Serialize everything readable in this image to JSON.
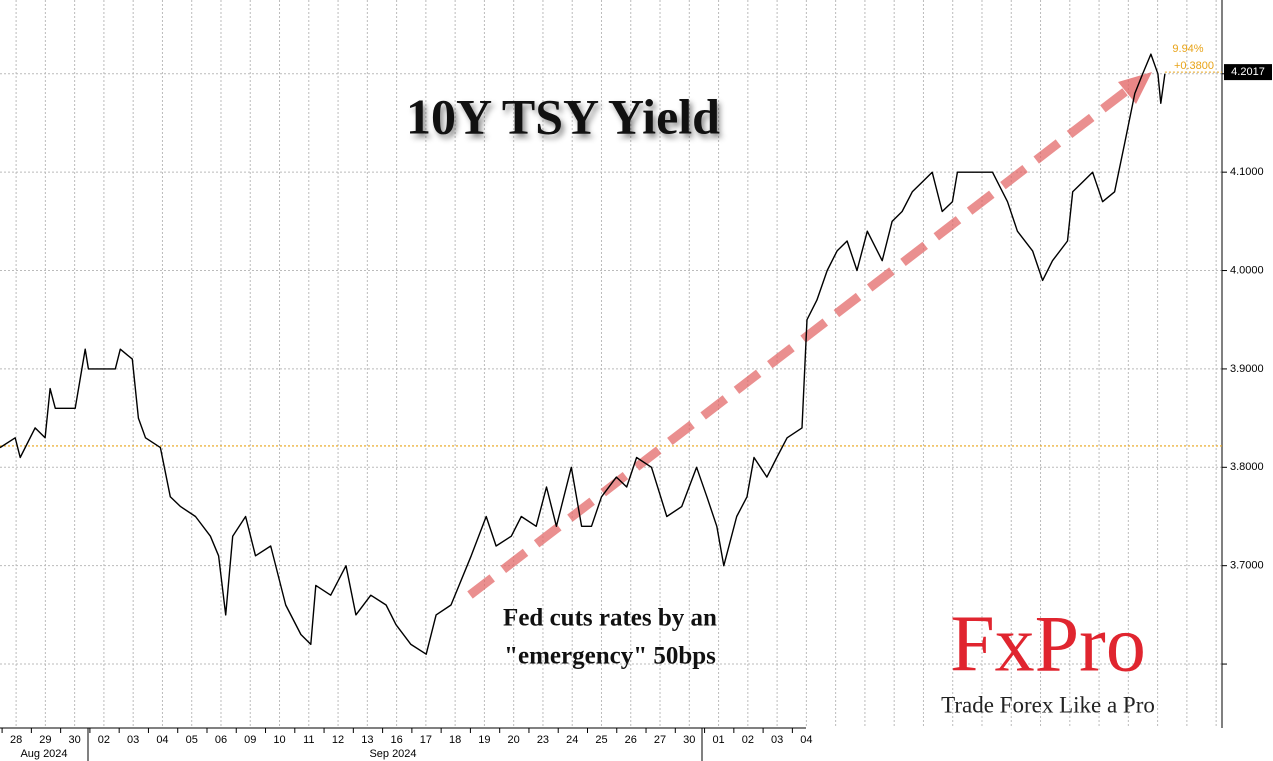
{
  "chart_data": {
    "type": "line",
    "title": "10Y TSY Yield",
    "annotation": [
      "Fed cuts rates by an",
      "\"emergency\" 50bps"
    ],
    "categories": [
      "28",
      "29",
      "30",
      "02",
      "03",
      "04",
      "05",
      "06",
      "09",
      "10",
      "11",
      "12",
      "13",
      "16",
      "17",
      "18",
      "19",
      "20",
      "23",
      "24",
      "25",
      "26",
      "27",
      "30",
      "01",
      "02",
      "03",
      "04",
      null,
      null,
      null,
      null,
      null,
      null,
      null,
      null,
      null,
      null,
      null,
      null,
      null,
      null
    ],
    "month_labels": [
      "Aug 2024",
      "Sep 2024"
    ],
    "xlim": [
      -0.55,
      41.2
    ],
    "ylim": [
      3.535,
      4.275
    ],
    "yticks": [
      {
        "value": 3.6,
        "label": null
      },
      {
        "value": 3.7,
        "label": "3.7000"
      },
      {
        "value": 3.8,
        "label": "3.8000"
      },
      {
        "value": 3.9,
        "label": "3.9000"
      },
      {
        "value": 4.0,
        "label": "4.0000"
      },
      {
        "value": 4.1,
        "label": "4.1000"
      },
      {
        "value": 4.2,
        "label": null
      }
    ],
    "grid": true,
    "series": [
      {
        "name": "10Y TSY Yield",
        "color": "#000000",
        "x": [
          -0.55,
          -0.03,
          0.14,
          0.65,
          0.99,
          1.16,
          1.34,
          2.02,
          2.19,
          2.36,
          2.47,
          3.39,
          3.56,
          3.97,
          4.18,
          4.42,
          4.93,
          5.27,
          5.62,
          6.13,
          6.64,
          6.92,
          7.16,
          7.4,
          7.84,
          8.18,
          8.7,
          9.21,
          9.73,
          10.07,
          10.24,
          10.75,
          11.27,
          11.61,
          12.12,
          12.64,
          12.98,
          13.49,
          14.01,
          14.35,
          14.86,
          15.55,
          16.06,
          16.4,
          16.92,
          17.26,
          17.77,
          18.12,
          18.46,
          18.97,
          19.32,
          19.66,
          20.0,
          20.51,
          20.86,
          21.2,
          21.71,
          22.23,
          22.74,
          23.25,
          23.6,
          23.94,
          24.18,
          24.62,
          24.97,
          25.21,
          25.65,
          25.99,
          26.34,
          26.85,
          27.02,
          27.36,
          27.71,
          28.05,
          28.39,
          28.73,
          29.08,
          29.59,
          29.93,
          30.27,
          30.62,
          30.96,
          31.3,
          31.64,
          31.99,
          32.16,
          33.36,
          33.87,
          34.21,
          34.73,
          35.07,
          35.41,
          35.92,
          36.1,
          36.44,
          36.78,
          37.12,
          37.53,
          37.88,
          38.22,
          38.49,
          38.77,
          39.01,
          39.11,
          39.25
        ],
        "values": [
          3.82,
          3.83,
          3.81,
          3.84,
          3.83,
          3.88,
          3.86,
          3.86,
          3.89,
          3.92,
          3.9,
          3.9,
          3.92,
          3.91,
          3.85,
          3.83,
          3.82,
          3.77,
          3.76,
          3.75,
          3.73,
          3.71,
          3.65,
          3.73,
          3.75,
          3.71,
          3.72,
          3.66,
          3.63,
          3.62,
          3.68,
          3.67,
          3.7,
          3.65,
          3.67,
          3.66,
          3.64,
          3.62,
          3.61,
          3.65,
          3.66,
          3.71,
          3.75,
          3.72,
          3.73,
          3.75,
          3.74,
          3.78,
          3.74,
          3.8,
          3.74,
          3.74,
          3.77,
          3.79,
          3.78,
          3.81,
          3.8,
          3.75,
          3.76,
          3.8,
          3.77,
          3.74,
          3.7,
          3.75,
          3.77,
          3.81,
          3.79,
          3.81,
          3.83,
          3.84,
          3.95,
          3.97,
          4.0,
          4.02,
          4.03,
          4.0,
          4.04,
          4.01,
          4.05,
          4.06,
          4.08,
          4.09,
          4.1,
          4.06,
          4.07,
          4.1,
          4.1,
          4.07,
          4.04,
          4.02,
          3.99,
          4.01,
          4.03,
          4.08,
          4.09,
          4.1,
          4.07,
          4.08,
          4.13,
          4.18,
          4.2,
          4.22,
          4.2,
          4.17,
          4.2
        ]
      }
    ],
    "reference_value": 3.8217,
    "reference_color": "#e8a317",
    "last_value": 4.2017,
    "last_value_label": "4.2017",
    "change_pct": "9.94%",
    "change_abs": "+0.3800",
    "logo": "FxPro",
    "tagline": "Trade Forex Like a Pro"
  }
}
